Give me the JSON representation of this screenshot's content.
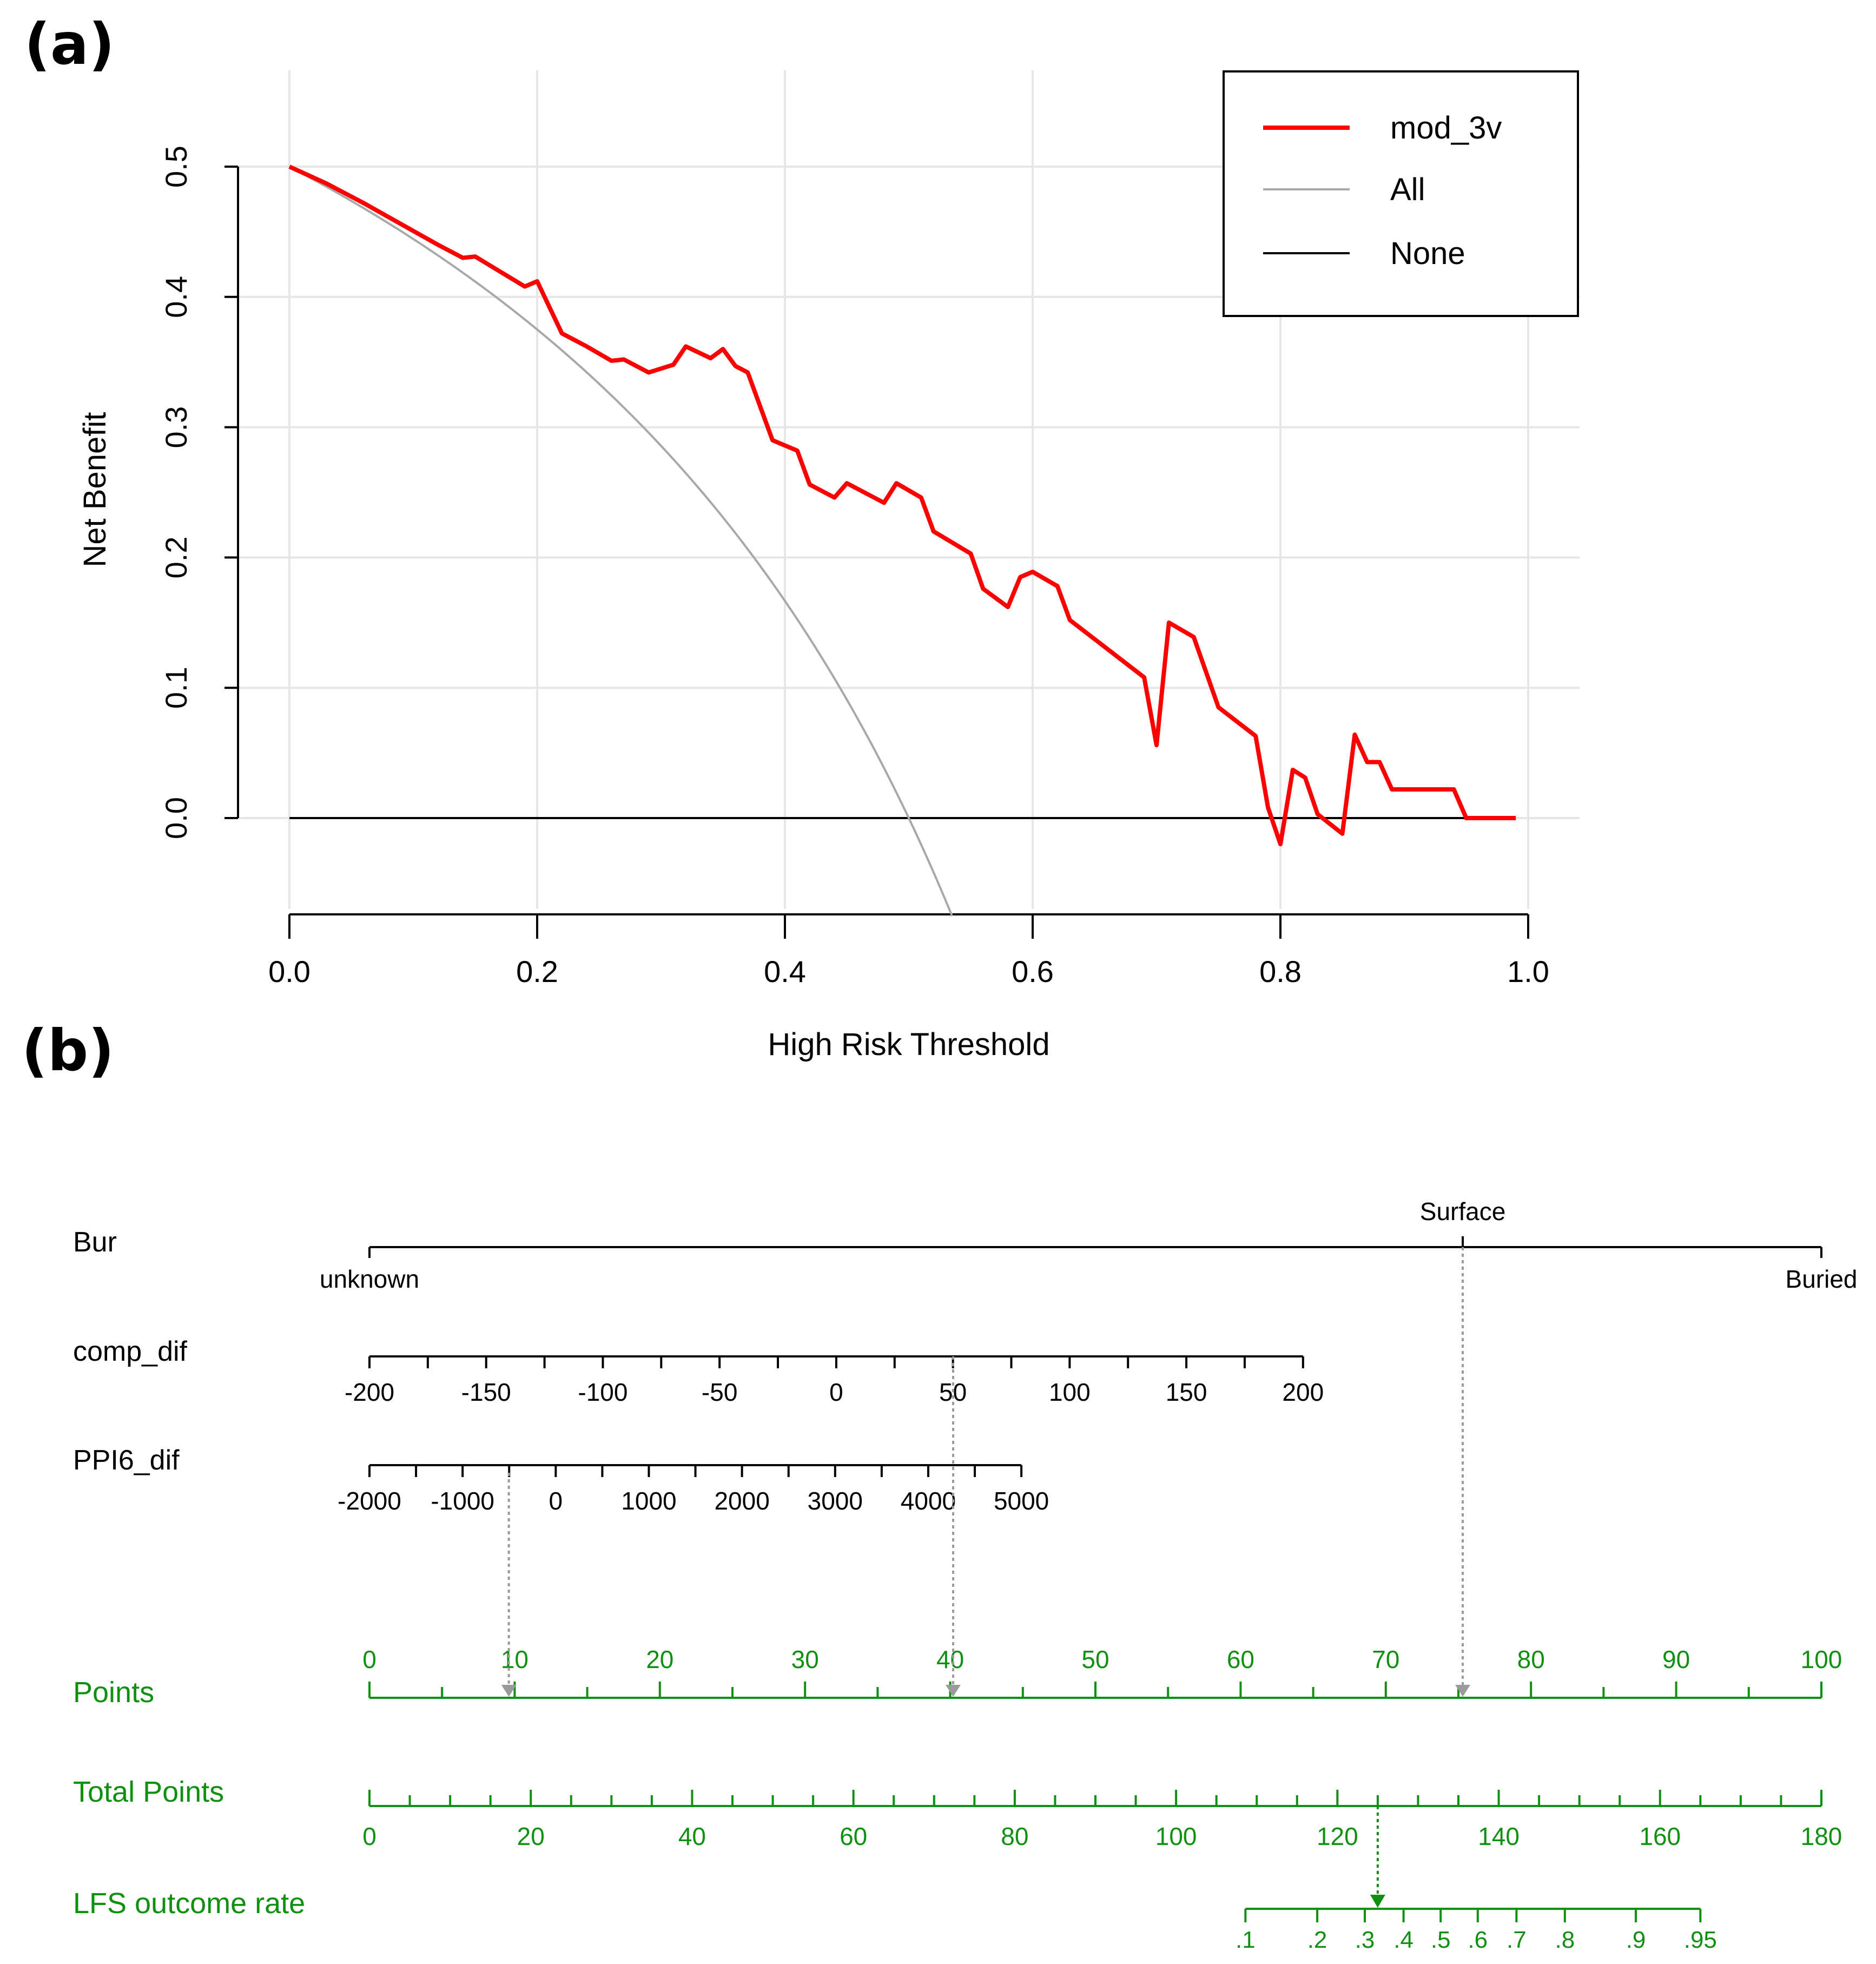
{
  "panels": {
    "a": {
      "label": "(a)"
    },
    "b": {
      "label": "(b)"
    }
  },
  "chart_data": [
    {
      "type": "line",
      "panel": "(a)",
      "title": "",
      "xlabel": "High Risk Threshold",
      "ylabel": "Net Benefit",
      "xlim": [
        0,
        1
      ],
      "ylim": [
        -0.075,
        0.5
      ],
      "x_ticks": [
        0,
        0.2,
        0.4,
        0.6,
        0.8,
        1.0
      ],
      "x_tick_labels": [
        "0.0",
        "0.2",
        "0.4",
        "0.6",
        "0.8",
        "1.0"
      ],
      "y_ticks": [
        0,
        0.1,
        0.2,
        0.3,
        0.4,
        0.5
      ],
      "y_tick_labels": [
        "0.0",
        "0.1",
        "0.2",
        "0.3",
        "0.4",
        "0.5"
      ],
      "grid": true,
      "legend_position": "top-right",
      "series": [
        {
          "name": "mod_3v",
          "color": "#ff0000",
          "points": [
            [
              0.0,
              0.5
            ],
            [
              0.03,
              0.487
            ],
            [
              0.06,
              0.472
            ],
            [
              0.09,
              0.456
            ],
            [
              0.12,
              0.44
            ],
            [
              0.14,
              0.43
            ],
            [
              0.15,
              0.431
            ],
            [
              0.19,
              0.408
            ],
            [
              0.2,
              0.412
            ],
            [
              0.22,
              0.372
            ],
            [
              0.24,
              0.362
            ],
            [
              0.26,
              0.351
            ],
            [
              0.27,
              0.352
            ],
            [
              0.29,
              0.342
            ],
            [
              0.31,
              0.348
            ],
            [
              0.32,
              0.362
            ],
            [
              0.34,
              0.353
            ],
            [
              0.35,
              0.36
            ],
            [
              0.36,
              0.347
            ],
            [
              0.37,
              0.342
            ],
            [
              0.39,
              0.29
            ],
            [
              0.41,
              0.282
            ],
            [
              0.42,
              0.256
            ],
            [
              0.44,
              0.246
            ],
            [
              0.45,
              0.257
            ],
            [
              0.48,
              0.242
            ],
            [
              0.49,
              0.257
            ],
            [
              0.51,
              0.246
            ],
            [
              0.52,
              0.22
            ],
            [
              0.55,
              0.203
            ],
            [
              0.56,
              0.176
            ],
            [
              0.58,
              0.162
            ],
            [
              0.59,
              0.185
            ],
            [
              0.6,
              0.189
            ],
            [
              0.62,
              0.178
            ],
            [
              0.63,
              0.152
            ],
            [
              0.69,
              0.108
            ],
            [
              0.7,
              0.056
            ],
            [
              0.71,
              0.15
            ],
            [
              0.73,
              0.139
            ],
            [
              0.75,
              0.085
            ],
            [
              0.78,
              0.063
            ],
            [
              0.79,
              0.008
            ],
            [
              0.8,
              -0.02
            ],
            [
              0.81,
              0.037
            ],
            [
              0.82,
              0.031
            ],
            [
              0.83,
              0.003
            ],
            [
              0.85,
              -0.012
            ],
            [
              0.86,
              0.064
            ],
            [
              0.87,
              0.043
            ],
            [
              0.88,
              0.043
            ],
            [
              0.89,
              0.022
            ],
            [
              0.94,
              0.022
            ],
            [
              0.95,
              0.0
            ],
            [
              0.99,
              0.0
            ]
          ]
        },
        {
          "name": "All",
          "color": "#a8a8a8",
          "formula": "0.5 - 0.5*t/(1-t)",
          "x_range": [
            0,
            0.535
          ]
        },
        {
          "name": "None",
          "color": "#000000",
          "points": [
            [
              0,
              0
            ],
            [
              0.99,
              0
            ]
          ]
        }
      ]
    },
    {
      "type": "nomogram",
      "panel": "(b)",
      "color": "#109010",
      "scales": [
        {
          "name": "Bur",
          "top_labels": [
            {
              "label": "Surface",
              "points": 75.3
            }
          ],
          "bottom_labels": [
            {
              "label": "unknown",
              "points": 0
            },
            {
              "label": "Buried",
              "points": 100
            }
          ],
          "selected_points": 75.3
        },
        {
          "name": "comp_dif",
          "ticks": [
            {
              "value": -200,
              "label": "-200"
            },
            {
              "value": -150,
              "label": "-150"
            },
            {
              "value": -100,
              "label": "-100"
            },
            {
              "value": -50,
              "label": "-50"
            },
            {
              "value": 0,
              "label": "0"
            },
            {
              "value": 50,
              "label": "50"
            },
            {
              "value": 100,
              "label": "100"
            },
            {
              "value": 150,
              "label": "150"
            },
            {
              "value": 200,
              "label": "200"
            }
          ],
          "points_range": [
            0,
            64.3
          ],
          "selected_value": 50,
          "selected_points": 40.2
        },
        {
          "name": "PPI6_dif",
          "ticks": [
            {
              "value": -2000,
              "label": "-2000"
            },
            {
              "value": -1000,
              "label": "-1000"
            },
            {
              "value": 0,
              "label": "0"
            },
            {
              "value": 1000,
              "label": "1000"
            },
            {
              "value": 2000,
              "label": "2000"
            },
            {
              "value": 3000,
              "label": "3000"
            },
            {
              "value": 4000,
              "label": "4000"
            },
            {
              "value": 5000,
              "label": "5000"
            }
          ],
          "points_range": [
            0,
            44.9
          ],
          "selected_value": -500,
          "selected_points": 9.6
        }
      ],
      "points_axis": {
        "name": "Points",
        "range": [
          0,
          100
        ],
        "ticks": [
          0,
          10,
          20,
          30,
          40,
          50,
          60,
          70,
          80,
          90,
          100
        ],
        "tick_labels": [
          "0",
          "10",
          "20",
          "30",
          "40",
          "50",
          "60",
          "70",
          "80",
          "90",
          "100"
        ]
      },
      "total_points_axis": {
        "name": "Total Points",
        "range": [
          0,
          180
        ],
        "ticks": [
          0,
          20,
          40,
          60,
          80,
          100,
          120,
          140,
          160,
          180
        ],
        "tick_labels": [
          "0",
          "20",
          "40",
          "60",
          "80",
          "100",
          "120",
          "140",
          "160",
          "180"
        ],
        "selected_total": 125
      },
      "outcome_axis": {
        "name": "LFS outcome rate",
        "ticks": [
          {
            "label": ".1",
            "total_points": 108.6
          },
          {
            "label": ".2",
            "total_points": 117.5
          },
          {
            "label": ".3",
            "total_points": 123.4
          },
          {
            "label": ".4",
            "total_points": 128.2
          },
          {
            "label": ".5",
            "total_points": 132.8
          },
          {
            "label": ".6",
            "total_points": 137.4
          },
          {
            "label": ".7",
            "total_points": 142.2
          },
          {
            "label": ".8",
            "total_points": 148.2
          },
          {
            "label": ".9",
            "total_points": 157.0
          },
          {
            "label": ".95",
            "total_points": 165.0
          }
        ]
      }
    }
  ]
}
